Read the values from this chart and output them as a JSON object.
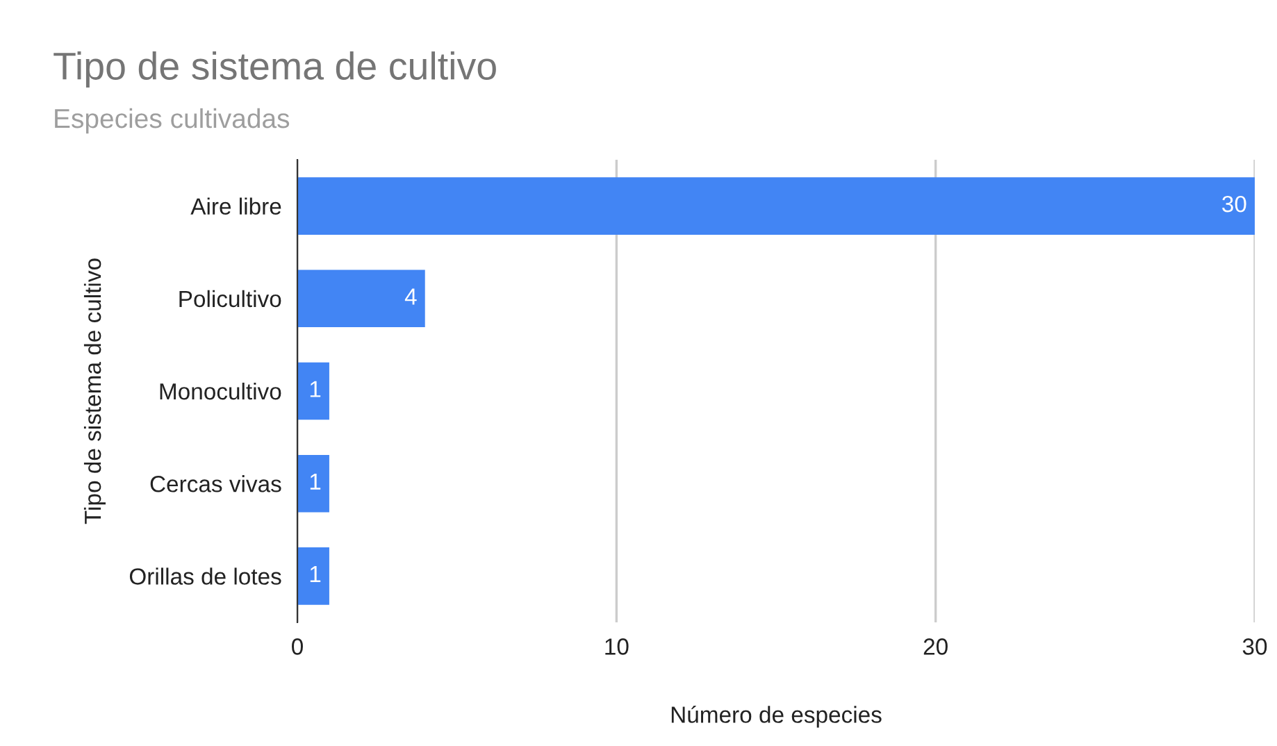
{
  "chart_data": {
    "type": "bar",
    "orientation": "horizontal",
    "title": "Tipo de sistema de cultivo",
    "subtitle": "Especies cultivadas",
    "xlabel": "Número de especies",
    "ylabel": "Tipo de sistema de cultivo",
    "categories": [
      "Aire libre",
      "Policultivo",
      "Monocultivo",
      "Cercas vivas",
      "Orillas de lotes"
    ],
    "values": [
      30,
      4,
      1,
      1,
      1
    ],
    "color": "#4285f4",
    "xlim": [
      0,
      30
    ],
    "xticks": [
      0,
      10,
      20,
      30
    ],
    "grid": "x",
    "data_labels": true
  }
}
